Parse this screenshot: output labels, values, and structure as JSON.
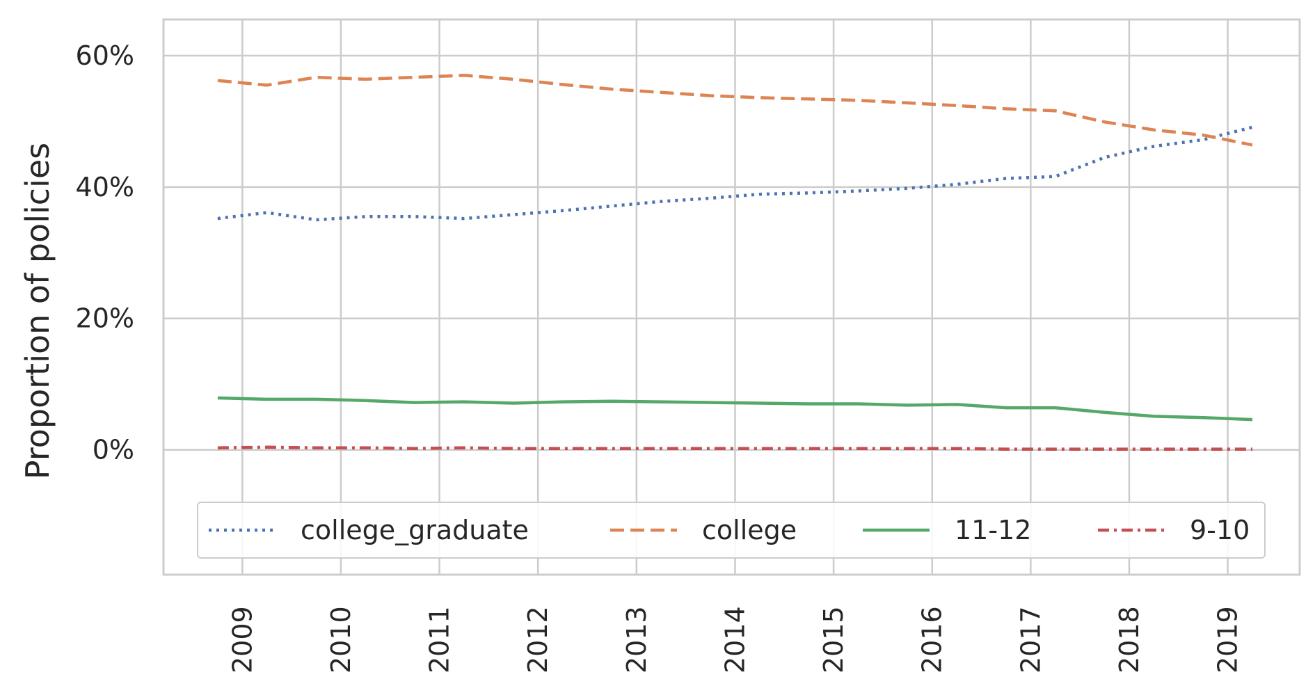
{
  "chart_data": {
    "type": "line",
    "title": "",
    "xlabel": "",
    "ylabel": "Proportion of policies",
    "x_tick_labels": [
      "2009",
      "2010",
      "2011",
      "2012",
      "2013",
      "2014",
      "2015",
      "2016",
      "2017",
      "2018",
      "2019"
    ],
    "y_tick_labels": [
      "0%",
      "20%",
      "40%",
      "60%"
    ],
    "y_ticks": [
      0,
      0.2,
      0.4,
      0.6
    ],
    "ylim": [
      -0.19,
      0.655
    ],
    "xlim": [
      2008.2,
      2019.73
    ],
    "grid": true,
    "legend_position": "lower center, 4 columns",
    "x": [
      2008.75,
      2009.25,
      2009.75,
      2010.25,
      2010.75,
      2011.25,
      2011.75,
      2012.25,
      2012.75,
      2013.25,
      2013.75,
      2014.25,
      2014.75,
      2015.25,
      2015.75,
      2016.25,
      2016.75,
      2017.25,
      2017.75,
      2018.25,
      2018.75,
      2019.25
    ],
    "series": [
      {
        "name": "college_graduate",
        "color": "#4c72b0",
        "dash": "dotted",
        "values": [
          0.352,
          0.361,
          0.35,
          0.355,
          0.355,
          0.352,
          0.358,
          0.364,
          0.371,
          0.378,
          0.383,
          0.389,
          0.391,
          0.394,
          0.398,
          0.404,
          0.413,
          0.416,
          0.445,
          0.462,
          0.472,
          0.491
        ]
      },
      {
        "name": "college",
        "color": "#dd8452",
        "dash": "dashed",
        "values": [
          0.562,
          0.555,
          0.567,
          0.564,
          0.567,
          0.57,
          0.564,
          0.556,
          0.549,
          0.544,
          0.539,
          0.536,
          0.534,
          0.532,
          0.528,
          0.524,
          0.519,
          0.516,
          0.499,
          0.487,
          0.479,
          0.464
        ]
      },
      {
        "name": "11-12",
        "color": "#55a868",
        "dash": "solid",
        "values": [
          0.079,
          0.077,
          0.077,
          0.075,
          0.072,
          0.073,
          0.071,
          0.073,
          0.074,
          0.073,
          0.072,
          0.071,
          0.07,
          0.07,
          0.068,
          0.069,
          0.064,
          0.064,
          0.057,
          0.051,
          0.049,
          0.046
        ]
      },
      {
        "name": "9-10",
        "color": "#c44e52",
        "dash": "dashdot",
        "values": [
          0.003,
          0.004,
          0.003,
          0.003,
          0.002,
          0.003,
          0.002,
          0.002,
          0.002,
          0.002,
          0.002,
          0.002,
          0.002,
          0.002,
          0.002,
          0.002,
          0.001,
          0.001,
          0.001,
          0.001,
          0.001,
          0.001
        ]
      }
    ]
  }
}
